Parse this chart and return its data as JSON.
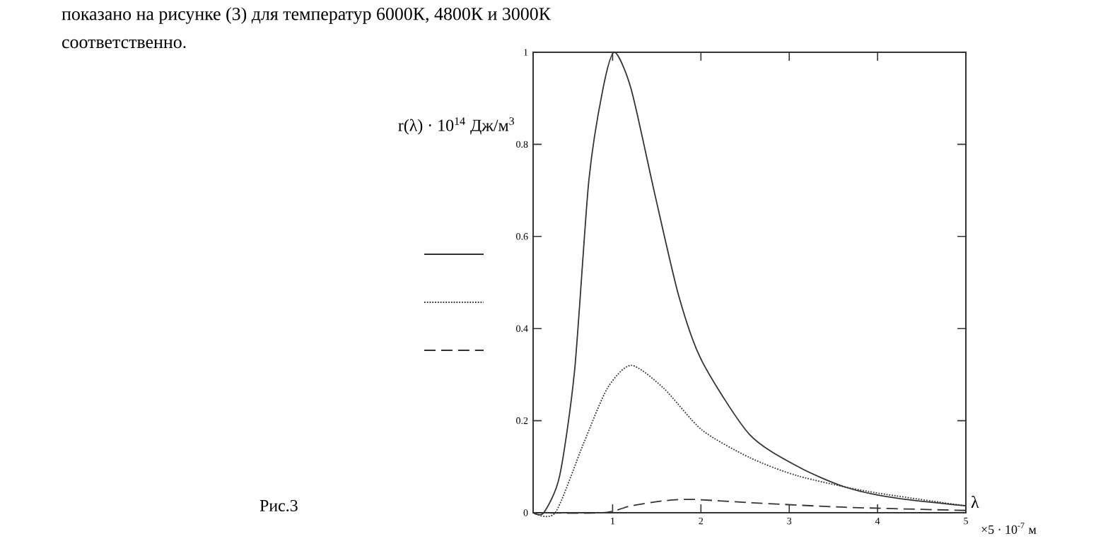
{
  "chart_data": {
    "type": "line",
    "annotations": [
      "показано на рисунке (3) для температур 6000К, 4800К и 3000К",
      "соответственно.",
      "×5 · 10$^{-7}$ м",
      "Рис.3"
    ],
    "ylabel": "r(λ) · 10$^{14}$ Дж/м$^{3}$",
    "xlabel": "λ",
    "xlim": [
      0.1,
      5
    ],
    "xticks": [
      1,
      2,
      3,
      4,
      5
    ],
    "ylim": [
      0,
      1
    ],
    "yticks": [
      0,
      0.2,
      0.4,
      0.6,
      0.8,
      1
    ],
    "series": [
      {
        "color": "#333333",
        "line_style": "solid",
        "x": [
          0.1,
          0.22,
          0.4,
          0.57,
          0.73,
          0.89,
          1.02,
          1.21,
          1.48,
          1.75,
          2.01,
          2.55,
          3.1,
          3.63,
          4.17,
          5
        ],
        "values": [
          0,
          0,
          0.08,
          0.31,
          0.72,
          0.92,
          1.0,
          0.92,
          0.69,
          0.47,
          0.33,
          0.17,
          0.1,
          0.056,
          0.033,
          0.015
        ]
      },
      {
        "color": "#333333",
        "line_style": "dotted",
        "x": [
          0.1,
          0.35,
          0.67,
          0.94,
          1.21,
          1.58,
          2.01,
          2.55,
          3.1,
          3.9,
          5
        ],
        "values": [
          0,
          0,
          0.15,
          0.27,
          0.32,
          0.27,
          0.18,
          0.12,
          0.08,
          0.046,
          0.015
        ]
      },
      {
        "color": "#333333",
        "line_style": "dashed",
        "x": [
          0.1,
          0.89,
          1.21,
          1.58,
          1.9,
          2.55,
          3.63,
          5
        ],
        "values": [
          0,
          0,
          0.015,
          0.026,
          0.029,
          0.022,
          0.012,
          0.005
        ]
      }
    ]
  }
}
